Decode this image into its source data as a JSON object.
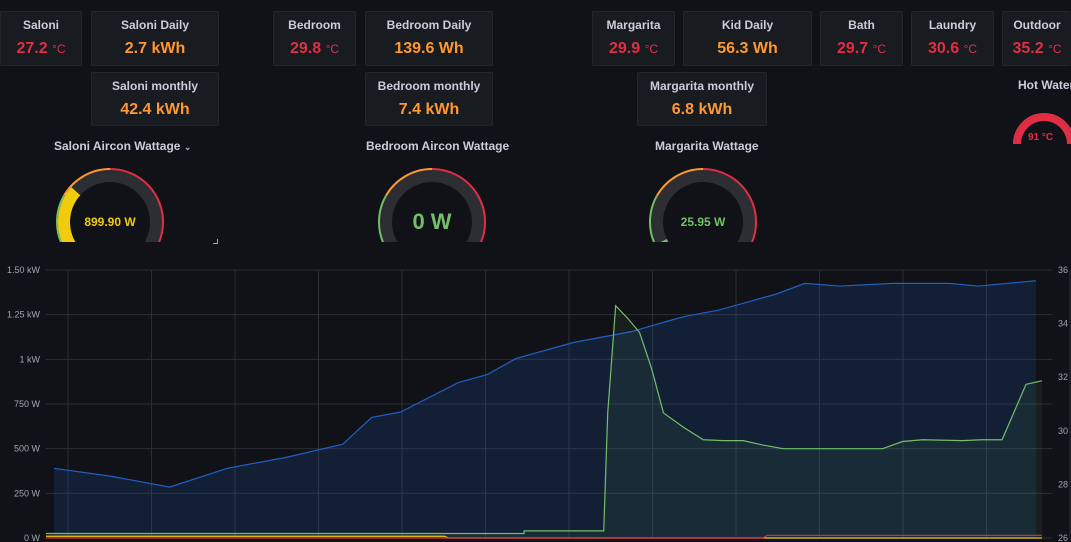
{
  "stats": [
    {
      "id": "saloni",
      "title": "Saloni",
      "value": "27.2",
      "unit": "°C",
      "color": "red"
    },
    {
      "id": "saloni-daily",
      "title": "Saloni Daily",
      "value": "2.7 kWh",
      "unit": "",
      "color": "orange"
    },
    {
      "id": "bedroom",
      "title": "Bedroom",
      "value": "29.8",
      "unit": "°C",
      "color": "red"
    },
    {
      "id": "bedroom-daily",
      "title": "Bedroom Daily",
      "value": "139.6 Wh",
      "unit": "",
      "color": "orange"
    },
    {
      "id": "margarita",
      "title": "Margarita",
      "value": "29.9",
      "unit": "°C",
      "color": "red"
    },
    {
      "id": "kid-daily",
      "title": "Kid Daily",
      "value": "56.3 Wh",
      "unit": "",
      "color": "orange"
    },
    {
      "id": "bath",
      "title": "Bath",
      "value": "29.7",
      "unit": "°C",
      "color": "red"
    },
    {
      "id": "laundry",
      "title": "Laundry",
      "value": "30.6",
      "unit": "°C",
      "color": "red"
    },
    {
      "id": "outdoor",
      "title": "Outdoor",
      "value": "35.2",
      "unit": "°C",
      "color": "red"
    },
    {
      "id": "saloni-monthly",
      "title": "Saloni monthly",
      "value": "42.4 kWh",
      "unit": "",
      "color": "orange"
    },
    {
      "id": "bedroom-monthly",
      "title": "Bedroom monthly",
      "value": "7.4 kWh",
      "unit": "",
      "color": "orange"
    },
    {
      "id": "margarita-monthly",
      "title": "Margarita monthly",
      "value": "6.8 kWh",
      "unit": "",
      "color": "orange"
    }
  ],
  "gauges": [
    {
      "title": "Saloni Aircon Wattage",
      "value_text": "899.90 W",
      "value_color": "#f2cc0c",
      "fill_fraction": 0.3
    },
    {
      "title": "Bedroom Aircon Wattage",
      "value_text": "0 W",
      "value_color": "#73bf69",
      "fill_fraction": 0.0
    },
    {
      "title": "Margarita Wattage",
      "value_text": "25.95 W",
      "value_color": "#73bf69",
      "fill_fraction": 0.02
    }
  ],
  "hot_water": {
    "title": "Hot Water",
    "value_text": "91 °C",
    "color": "#e02f44"
  },
  "colors": {
    "red": "#e02f44",
    "orange": "#ff9830",
    "yellow": "#f2cc0c",
    "green": "#73bf69",
    "blue": "#1f60c4"
  },
  "chart_data": {
    "type": "line",
    "left_axis": {
      "ticks": [
        "1.50 kW",
        "1.25 kW",
        "1 kW",
        "750 W",
        "500 W",
        "250 W",
        "0 W"
      ],
      "ylim": [
        0,
        1500
      ]
    },
    "right_axis": {
      "ticks": [
        "36",
        "34",
        "32",
        "30",
        "28",
        "26"
      ],
      "ylim": [
        26,
        36
      ]
    },
    "series": [
      {
        "axis": "right",
        "color": "#1f60c4",
        "points": [
          [
            0,
            28.6
          ],
          [
            10,
            28.3
          ],
          [
            20,
            27.9
          ],
          [
            30,
            28.6
          ],
          [
            40,
            29.0
          ],
          [
            50,
            29.5
          ],
          [
            55,
            30.5
          ],
          [
            60,
            30.7
          ],
          [
            70,
            31.8
          ],
          [
            75,
            32.1
          ],
          [
            80,
            32.7
          ],
          [
            90,
            33.3
          ],
          [
            95,
            33.5
          ],
          [
            100,
            33.7
          ],
          [
            108,
            34.2
          ],
          [
            110,
            34.3
          ],
          [
            115,
            34.5
          ],
          [
            120,
            34.8
          ],
          [
            125,
            35.1
          ],
          [
            130,
            35.5
          ],
          [
            136,
            35.4
          ],
          [
            145,
            35.5
          ],
          [
            155,
            35.5
          ],
          [
            160,
            35.4
          ],
          [
            170,
            35.6
          ]
        ]
      },
      {
        "axis": "left",
        "color": "#73bf69",
        "points": [
          [
            0,
            25
          ],
          [
            118,
            25
          ],
          [
            118,
            25
          ],
          [
            119,
            25
          ],
          [
            120,
            25
          ],
          [
            120,
            40
          ],
          [
            140,
            40
          ],
          [
            141,
            700
          ],
          [
            143,
            1300
          ],
          [
            146,
            1230
          ],
          [
            149,
            1150
          ],
          [
            152,
            950
          ],
          [
            155,
            700
          ],
          [
            160,
            620
          ],
          [
            165,
            550
          ],
          [
            170,
            545
          ],
          [
            175,
            545
          ],
          [
            180,
            520
          ],
          [
            185,
            500
          ],
          [
            190,
            500
          ],
          [
            200,
            500
          ],
          [
            210,
            500
          ],
          [
            215,
            540
          ],
          [
            220,
            550
          ],
          [
            230,
            545
          ],
          [
            235,
            550
          ],
          [
            240,
            550
          ],
          [
            246,
            860
          ],
          [
            250,
            880
          ]
        ]
      },
      {
        "axis": "left",
        "color": "#f2cc0c",
        "points": [
          [
            0,
            10
          ],
          [
            100,
            10
          ],
          [
            101,
            0
          ],
          [
            250,
            0
          ]
        ]
      },
      {
        "axis": "left",
        "color": "#e02f44",
        "points": [
          [
            0,
            0
          ],
          [
            180,
            0
          ],
          [
            181,
            15
          ],
          [
            250,
            15
          ]
        ]
      }
    ]
  }
}
